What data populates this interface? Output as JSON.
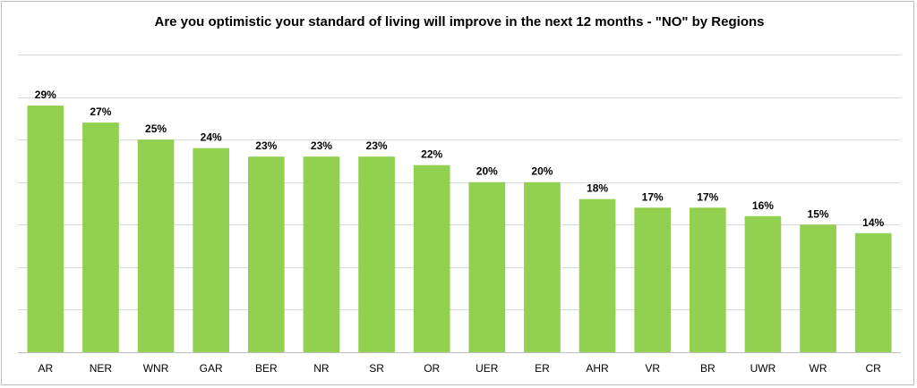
{
  "chart_data": {
    "type": "bar",
    "title": "Are you optimistic your standard of living will improve in the next 12 months - \"NO\" by Regions",
    "categories": [
      "AR",
      "NER",
      "WNR",
      "GAR",
      "BER",
      "NR",
      "SR",
      "OR",
      "UER",
      "ER",
      "AHR",
      "VR",
      "BR",
      "UWR",
      "WR",
      "CR"
    ],
    "values": [
      29,
      27,
      25,
      24,
      23,
      23,
      23,
      22,
      20,
      20,
      18,
      17,
      17,
      16,
      15,
      14
    ],
    "value_labels": [
      "29%",
      "27%",
      "25%",
      "24%",
      "23%",
      "23%",
      "23%",
      "22%",
      "20%",
      "20%",
      "18%",
      "17%",
      "17%",
      "16%",
      "15%",
      "14%"
    ],
    "xlabel": "",
    "ylabel": "",
    "ylim": [
      0,
      35
    ],
    "grid": true,
    "bar_color": "#92d050",
    "gridline_color": "#d9d9d9",
    "axis_tick_labels_visible": false,
    "legend": "none"
  }
}
